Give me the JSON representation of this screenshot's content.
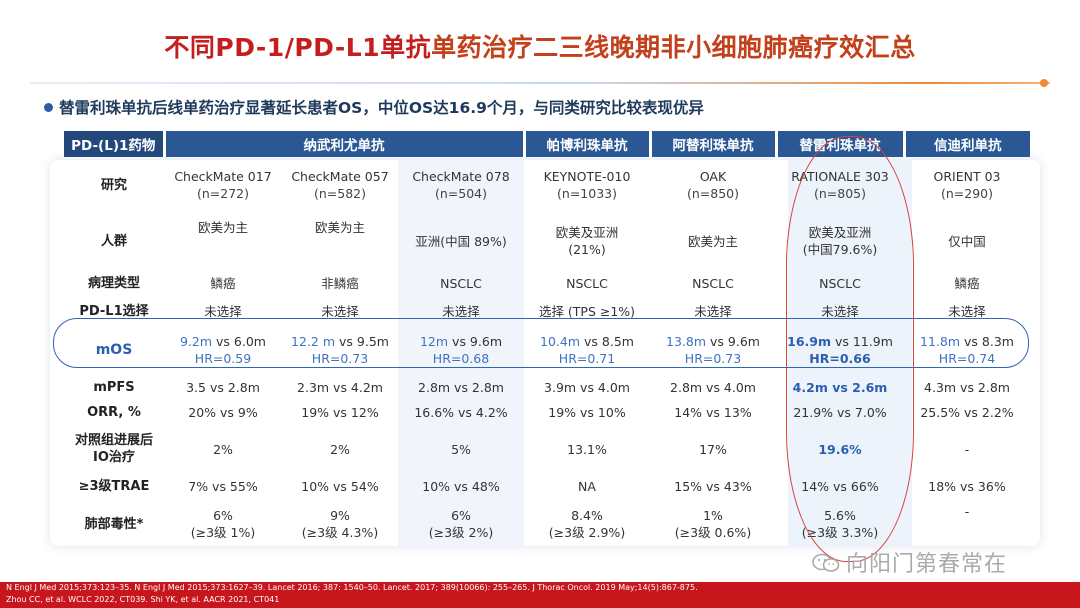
{
  "title_red": "不同PD-1/PD-L1单抗",
  "title_orange": "单药治疗二三线晚期非小细胞肺癌疗效汇总",
  "subtitle": "替雷利珠单抗后线单药治疗显著延长患者OS，中位OS达16.9个月，与同类研究比较表现优异",
  "header": {
    "corner": "PD-(L)1药物",
    "groups": [
      "纳武利尤单抗",
      "帕博利珠单抗",
      "阿替利珠单抗",
      "替雷利珠单抗",
      "信迪利单抗"
    ]
  },
  "rows": {
    "study": {
      "label": "研究",
      "cells": [
        {
          "name": "CheckMate 017",
          "n": "(n=272)"
        },
        {
          "name": "CheckMate 057",
          "n": "(n=582)"
        },
        {
          "name": "CheckMate 078",
          "n": "(n=504)"
        },
        {
          "name": "KEYNOTE-010",
          "n": "(n=1033)"
        },
        {
          "name": "OAK",
          "n": "(n=850)"
        },
        {
          "name": "RATIONALE 303",
          "n": "(n=805)"
        },
        {
          "name": "ORIENT 03",
          "n": "(n=290)"
        }
      ]
    },
    "population": {
      "label": "人群",
      "cells": [
        {
          "l1": "欧美为主",
          "l2": ""
        },
        {
          "l1": "欧美为主",
          "l2": ""
        },
        {
          "l1": "亚洲(中国 89%)",
          "l2": ""
        },
        {
          "l1": "欧美及亚洲",
          "l2": "(21%)"
        },
        {
          "l1": "欧美为主",
          "l2": ""
        },
        {
          "l1": "欧美及亚洲",
          "l2": "(中国79.6%)"
        },
        {
          "l1": "仅中国",
          "l2": ""
        }
      ]
    },
    "pathology": {
      "label": "病理类型",
      "cells": [
        "鳞癌",
        "非鳞癌",
        "NSCLC",
        "NSCLC",
        "NSCLC",
        "NSCLC",
        "鳞癌"
      ]
    },
    "pdl1": {
      "label": "PD-L1选择",
      "cells": [
        "未选择",
        "未选择",
        "未选择",
        "选择 (TPS ≥1%)",
        "未选择",
        "未选择",
        "未选择"
      ]
    },
    "mos": {
      "label": "mOS",
      "cells": [
        {
          "a": "9.2m",
          "b": " vs 6.0m",
          "hr": "HR=0.59"
        },
        {
          "a": "12.2 m",
          "b": " vs 9.5m",
          "hr": "HR=0.73"
        },
        {
          "a": "12m",
          "b": " vs 9.6m",
          "hr": "HR=0.68"
        },
        {
          "a": "10.4m",
          "b": " vs 8.5m",
          "hr": "HR=0.71"
        },
        {
          "a": "13.8m",
          "b": " vs 9.6m",
          "hr": "HR=0.73"
        },
        {
          "a": "16.9m",
          "b": " vs 11.9m",
          "hr": "HR=0.66"
        },
        {
          "a": "11.8m",
          "b": " vs 8.3m",
          "hr": "HR=0.74"
        }
      ]
    },
    "mpfs": {
      "label": "mPFS",
      "cells": [
        "3.5 vs 2.8m",
        "2.3m vs 4.2m",
        "2.8m vs 2.8m",
        "3.9m vs 4.0m",
        "2.8m vs 4.0m",
        "4.2m vs 2.6m",
        "4.3m vs 2.8m"
      ]
    },
    "orr": {
      "label": "ORR, %",
      "cells": [
        "20% vs 9%",
        "19% vs 12%",
        "16.6% vs 4.2%",
        "19% vs 10%",
        "14% vs 13%",
        "21.9% vs 7.0%",
        "25.5% vs 2.2%"
      ]
    },
    "ctrl": {
      "label1": "对照组进展后",
      "label2": "IO治疗",
      "cells": [
        "2%",
        "2%",
        "5%",
        "13.1%",
        "17%",
        "19.6%",
        "-"
      ]
    },
    "trae": {
      "label": "≥3级TRAE",
      "cells": [
        "7% vs 55%",
        "10% vs 54%",
        "10% vs 48%",
        "NA",
        "15% vs 43%",
        "14% vs 66%",
        "18% vs 36%"
      ]
    },
    "lung": {
      "label": "肺部毒性*",
      "cells": [
        {
          "l1": "6%",
          "l2": "(≥3级 1%)"
        },
        {
          "l1": "9%",
          "l2": "(≥3级 4.3%)"
        },
        {
          "l1": "6%",
          "l2": "(≥3级 2%)"
        },
        {
          "l1": "8.4%",
          "l2": "(≥3级 2.9%)"
        },
        {
          "l1": "1%",
          "l2": "(≥3级 0.6%)"
        },
        {
          "l1": "5.6%",
          "l2": "(≥3级 3.3%)"
        },
        {
          "l1": "-",
          "l2": ""
        }
      ]
    }
  },
  "footer": {
    "line1": "N Engl J Med 2015;373:123–35.    N Engl J Med 2015;373:1627–39.    Lancet 2016; 387: 1540–50.    Lancet. 2017; 389(10066): 255–265.    J Thorac Oncol. 2019 May;14(5):867-875.",
    "line2": "Zhou CC, et al. WCLC 2022, CT039. Shi YK, et al. AACR 2021, CT041"
  },
  "watermark": "向阳门第春常在",
  "colors": {
    "header_blue": "#2a5894",
    "highlight_blue": "#2a5fb0",
    "title_red": "#c41e1e",
    "footer_red": "#c8161d"
  }
}
